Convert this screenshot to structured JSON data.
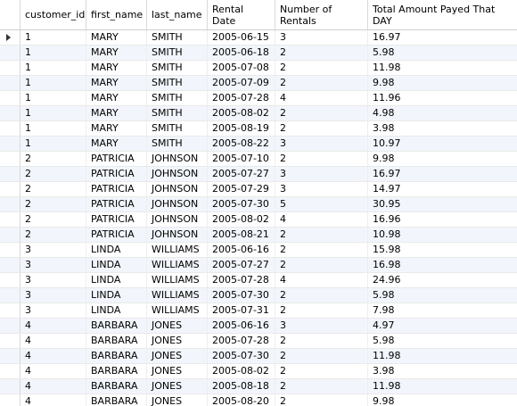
{
  "grid": {
    "columns": [
      {
        "label": "customer_id"
      },
      {
        "label": "first_name"
      },
      {
        "label": "last_name"
      },
      {
        "label": "Rental\nDate"
      },
      {
        "label": "Number of\nRentals"
      },
      {
        "label": "Total Amount Payed That\nDAY"
      }
    ],
    "rows": [
      [
        "1",
        "MARY",
        "SMITH",
        "2005-06-15",
        "3",
        "16.97"
      ],
      [
        "1",
        "MARY",
        "SMITH",
        "2005-06-18",
        "2",
        "5.98"
      ],
      [
        "1",
        "MARY",
        "SMITH",
        "2005-07-08",
        "2",
        "11.98"
      ],
      [
        "1",
        "MARY",
        "SMITH",
        "2005-07-09",
        "2",
        "9.98"
      ],
      [
        "1",
        "MARY",
        "SMITH",
        "2005-07-28",
        "4",
        "11.96"
      ],
      [
        "1",
        "MARY",
        "SMITH",
        "2005-08-02",
        "2",
        "4.98"
      ],
      [
        "1",
        "MARY",
        "SMITH",
        "2005-08-19",
        "2",
        "3.98"
      ],
      [
        "1",
        "MARY",
        "SMITH",
        "2005-08-22",
        "3",
        "10.97"
      ],
      [
        "2",
        "PATRICIA",
        "JOHNSON",
        "2005-07-10",
        "2",
        "9.98"
      ],
      [
        "2",
        "PATRICIA",
        "JOHNSON",
        "2005-07-27",
        "3",
        "16.97"
      ],
      [
        "2",
        "PATRICIA",
        "JOHNSON",
        "2005-07-29",
        "3",
        "14.97"
      ],
      [
        "2",
        "PATRICIA",
        "JOHNSON",
        "2005-07-30",
        "5",
        "30.95"
      ],
      [
        "2",
        "PATRICIA",
        "JOHNSON",
        "2005-08-02",
        "4",
        "16.96"
      ],
      [
        "2",
        "PATRICIA",
        "JOHNSON",
        "2005-08-21",
        "2",
        "10.98"
      ],
      [
        "3",
        "LINDA",
        "WILLIAMS",
        "2005-06-16",
        "2",
        "15.98"
      ],
      [
        "3",
        "LINDA",
        "WILLIAMS",
        "2005-07-27",
        "2",
        "16.98"
      ],
      [
        "3",
        "LINDA",
        "WILLIAMS",
        "2005-07-28",
        "4",
        "24.96"
      ],
      [
        "3",
        "LINDA",
        "WILLIAMS",
        "2005-07-30",
        "2",
        "5.98"
      ],
      [
        "3",
        "LINDA",
        "WILLIAMS",
        "2005-07-31",
        "2",
        "7.98"
      ],
      [
        "4",
        "BARBARA",
        "JONES",
        "2005-06-16",
        "3",
        "4.97"
      ],
      [
        "4",
        "BARBARA",
        "JONES",
        "2005-07-28",
        "2",
        "5.98"
      ],
      [
        "4",
        "BARBARA",
        "JONES",
        "2005-07-30",
        "2",
        "11.98"
      ],
      [
        "4",
        "BARBARA",
        "JONES",
        "2005-08-02",
        "2",
        "3.98"
      ],
      [
        "4",
        "BARBARA",
        "JONES",
        "2005-08-18",
        "2",
        "11.98"
      ],
      [
        "4",
        "BARBARA",
        "JONES",
        "2005-08-20",
        "2",
        "9.98"
      ]
    ],
    "selected_row": 0,
    "cursor_icon": "row-pointer-triangle-icon"
  }
}
